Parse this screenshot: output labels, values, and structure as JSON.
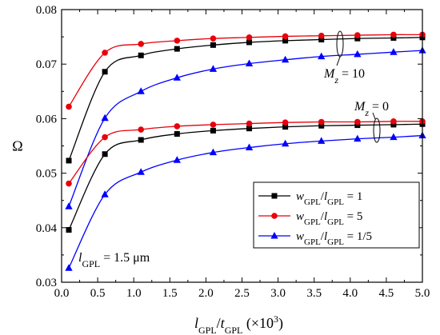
{
  "chart_data": {
    "type": "line",
    "xlabel": {
      "base": "l",
      "sub1": "GPL",
      "sep": "/",
      "base2": "t",
      "sub2": "GPL",
      "suffix": " (×10",
      "sup": "3",
      "close": ")"
    },
    "ylabel": "Ω",
    "xlim": [
      0,
      5
    ],
    "ylim": [
      0.03,
      0.08
    ],
    "xticks": [
      0.0,
      0.5,
      1.0,
      1.5,
      2.0,
      2.5,
      3.0,
      3.5,
      4.0,
      4.5,
      5.0
    ],
    "xtick_labels": [
      "0.0",
      "0.5",
      "1.0",
      "1.5",
      "2.0",
      "2.5",
      "3.0",
      "3.5",
      "4.0",
      "4.5",
      "5.0"
    ],
    "yticks": [
      0.03,
      0.04,
      0.05,
      0.06,
      0.07,
      0.08
    ],
    "ytick_labels": [
      "0.03",
      "0.04",
      "0.05",
      "0.06",
      "0.07",
      "0.08"
    ],
    "grid": false,
    "legend_position": "center-right",
    "legend_entries": [
      {
        "parts": [
          "w",
          "GPL",
          "/",
          "l",
          "GPL",
          " = 1"
        ],
        "color": "#000000",
        "marker": "square"
      },
      {
        "parts": [
          "w",
          "GPL",
          "/",
          "l",
          "GPL",
          " = 5"
        ],
        "color": "#e8000b",
        "marker": "circle"
      },
      {
        "parts": [
          "w",
          "GPL",
          "/",
          "l",
          "GPL",
          " = 1/5"
        ],
        "color": "#0000ff",
        "marker": "triangle"
      }
    ],
    "annotations": [
      {
        "id": "mz10",
        "parts": [
          "M",
          "z",
          " = 10"
        ]
      },
      {
        "id": "mz0",
        "parts": [
          "M",
          "z",
          " = 0"
        ]
      },
      {
        "id": "lgpl",
        "parts": [
          "l",
          "GPL",
          " = 1.5 μm"
        ]
      }
    ],
    "x": [
      0.1,
      0.6,
      1.1,
      1.6,
      2.1,
      2.6,
      3.1,
      3.6,
      4.1,
      4.6,
      5.0
    ],
    "series": [
      {
        "group": "Mz = 10",
        "legend_index": 0,
        "color": "#000000",
        "marker": "square",
        "values": [
          0.0523,
          0.0686,
          0.0716,
          0.0728,
          0.0735,
          0.074,
          0.0743,
          0.0745,
          0.0747,
          0.0748,
          0.0749
        ]
      },
      {
        "group": "Mz = 10",
        "legend_index": 1,
        "color": "#e8000b",
        "marker": "circle",
        "values": [
          0.0622,
          0.0721,
          0.0737,
          0.0743,
          0.0747,
          0.0749,
          0.0751,
          0.0752,
          0.0753,
          0.0754,
          0.0754
        ]
      },
      {
        "group": "Mz = 10",
        "legend_index": 2,
        "color": "#0000ff",
        "marker": "triangle",
        "values": [
          0.0439,
          0.0601,
          0.065,
          0.0675,
          0.0691,
          0.0701,
          0.0708,
          0.0714,
          0.0718,
          0.0722,
          0.0725
        ]
      },
      {
        "group": "Mz = 0",
        "legend_index": 0,
        "color": "#000000",
        "marker": "square",
        "values": [
          0.0396,
          0.0535,
          0.0561,
          0.0572,
          0.0578,
          0.0582,
          0.0585,
          0.0587,
          0.0588,
          0.0589,
          0.059
        ]
      },
      {
        "group": "Mz = 0",
        "legend_index": 1,
        "color": "#e8000b",
        "marker": "circle",
        "values": [
          0.0481,
          0.0566,
          0.058,
          0.0586,
          0.0589,
          0.0591,
          0.0593,
          0.0594,
          0.0594,
          0.0595,
          0.0595
        ]
      },
      {
        "group": "Mz = 0",
        "legend_index": 2,
        "color": "#0000ff",
        "marker": "triangle",
        "values": [
          0.0326,
          0.0461,
          0.0502,
          0.0524,
          0.0538,
          0.0547,
          0.0554,
          0.0559,
          0.0563,
          0.0566,
          0.0569
        ]
      }
    ]
  }
}
